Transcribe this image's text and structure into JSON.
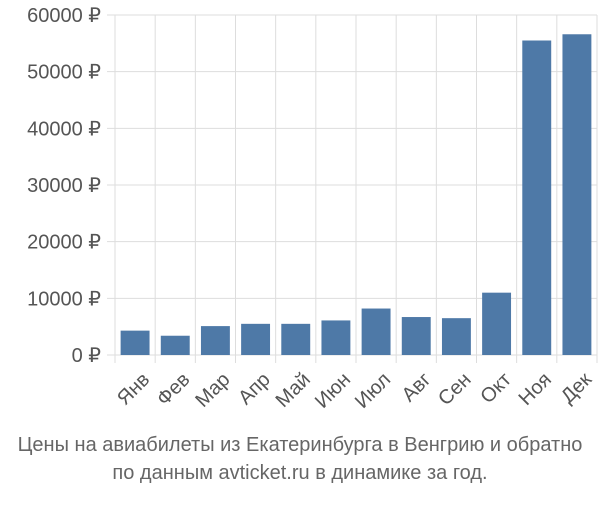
{
  "chart_data": {
    "type": "bar",
    "categories": [
      "Янв",
      "Фев",
      "Мар",
      "Апр",
      "Май",
      "Июн",
      "Июл",
      "Авг",
      "Сен",
      "Окт",
      "Ноя",
      "Дек"
    ],
    "values": [
      4300,
      3400,
      5100,
      5500,
      5500,
      6100,
      8200,
      6700,
      6500,
      11000,
      55500,
      56600
    ],
    "ylim": [
      0,
      60000
    ],
    "yticks": [
      0,
      10000,
      20000,
      30000,
      40000,
      50000,
      60000
    ],
    "ytick_labels": [
      "0 ₽",
      "10000 ₽",
      "20000 ₽",
      "30000 ₽",
      "40000 ₽",
      "50000 ₽",
      "60000 ₽"
    ],
    "grid": true,
    "bar_color": "#4e79a7",
    "grid_color": "#dddddd"
  },
  "caption": {
    "line1": "Цены на авиабилеты из Екатеринбурга в Венгрию и обратно",
    "line2": "по данным avticket.ru в динамике за год."
  }
}
